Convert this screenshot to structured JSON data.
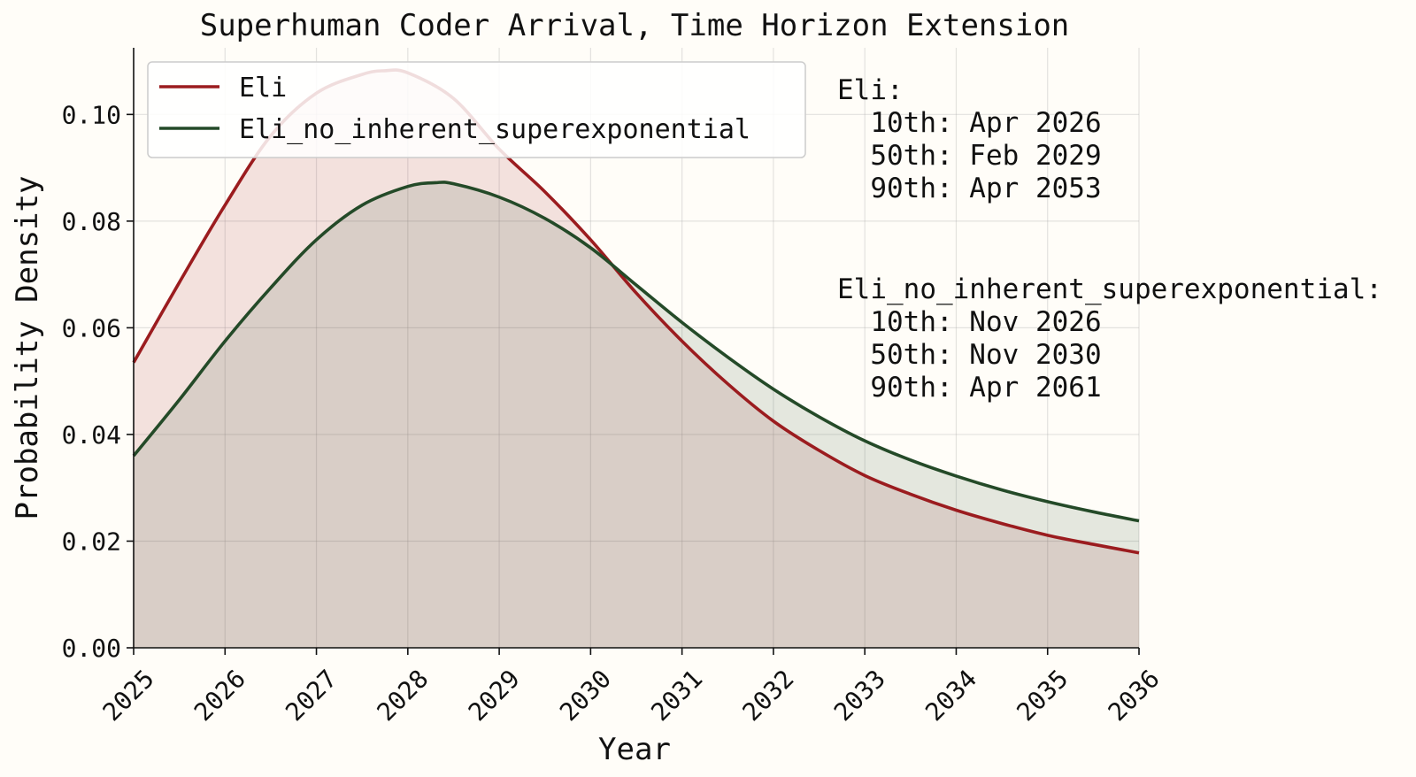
{
  "chart_data": {
    "type": "area",
    "title": "Superhuman Coder Arrival, Time Horizon Extension",
    "xlabel": "Year",
    "ylabel": "Probability Density",
    "xlim": [
      2025,
      2036
    ],
    "ylim": [
      0,
      0.1125
    ],
    "xticks": [
      2025,
      2026,
      2027,
      2028,
      2029,
      2030,
      2031,
      2032,
      2033,
      2034,
      2035,
      2036
    ],
    "xtick_labels": [
      "2025",
      "2026",
      "2027",
      "2028",
      "2029",
      "2030",
      "2031",
      "2032",
      "2033",
      "2034",
      "2035",
      "2036"
    ],
    "yticks": [
      0,
      0.02,
      0.04,
      0.06,
      0.08,
      0.1
    ],
    "ytick_labels": [
      "0.00",
      "0.02",
      "0.04",
      "0.06",
      "0.08",
      "0.10"
    ],
    "grid": true,
    "legend_position": "upper-left",
    "series": [
      {
        "name": "Eli",
        "color": "#9b1c1f",
        "fill": "#9b1c1f",
        "fill_opacity": 0.12,
        "x": [
          2025,
          2025.5,
          2026,
          2026.5,
          2027,
          2027.5,
          2027.75,
          2028,
          2028.5,
          2029,
          2029.5,
          2030,
          2030.5,
          2031,
          2031.5,
          2032,
          2032.5,
          2033,
          2033.5,
          2034,
          2034.5,
          2035,
          2035.5,
          2036
        ],
        "y": [
          0.0535,
          0.0685,
          0.083,
          0.096,
          0.104,
          0.1075,
          0.1082,
          0.1078,
          0.103,
          0.0935,
          0.0855,
          0.0765,
          0.0665,
          0.0575,
          0.0495,
          0.0425,
          0.037,
          0.0323,
          0.0288,
          0.0258,
          0.0233,
          0.0211,
          0.0194,
          0.0178
        ]
      },
      {
        "name": "Eli_no_inherent_superexponential",
        "color": "#244a28",
        "fill": "#244a28",
        "fill_opacity": 0.12,
        "x": [
          2025,
          2025.5,
          2026,
          2026.5,
          2027,
          2027.5,
          2028,
          2028.3,
          2028.5,
          2029,
          2029.5,
          2030,
          2030.5,
          2031,
          2031.5,
          2032,
          2032.5,
          2033,
          2033.5,
          2034,
          2034.5,
          2035,
          2035.5,
          2036
        ],
        "y": [
          0.036,
          0.0465,
          0.0575,
          0.0675,
          0.0765,
          0.083,
          0.0865,
          0.0872,
          0.087,
          0.0845,
          0.0805,
          0.075,
          0.068,
          0.061,
          0.0545,
          0.0485,
          0.0433,
          0.0388,
          0.0352,
          0.0322,
          0.0296,
          0.0274,
          0.0255,
          0.0238
        ]
      }
    ],
    "annotations": [
      {
        "heading": "Eli:",
        "lines": [
          "  10th: Apr 2026",
          "  50th: Feb 2029",
          "  90th: Apr 2053"
        ]
      },
      {
        "heading": "Eli_no_inherent_superexponential:",
        "lines": [
          "  10th: Nov 2026",
          "  50th: Nov 2030",
          "  90th: Apr 2061"
        ]
      }
    ]
  }
}
